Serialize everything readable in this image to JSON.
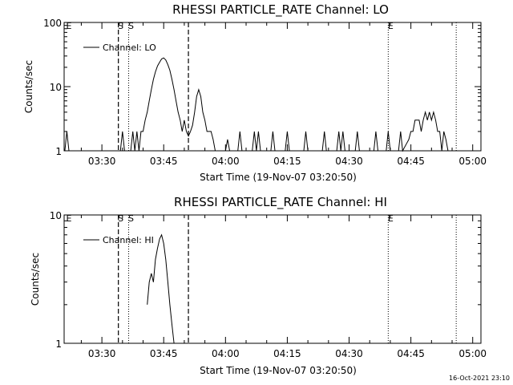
{
  "footer": {
    "stamp": "16-Oct-2021 23:10"
  },
  "chart_data": [
    {
      "type": "line",
      "title": "RHESSI PARTICLE_RATE Channel: LO",
      "xlabel": "Start Time (19-Nov-07 03:20:50)",
      "ylabel": "Counts/sec",
      "yscale": "log",
      "ylim": [
        1,
        100
      ],
      "yticks": [
        {
          "v": 1,
          "label": "1"
        },
        {
          "v": 10,
          "label": "10"
        },
        {
          "v": 100,
          "label": "100"
        }
      ],
      "xlim": [
        "03:20:50",
        "05:02:00"
      ],
      "xticks": [
        "03:30",
        "03:45",
        "04:00",
        "04:15",
        "04:30",
        "04:45",
        "05:00"
      ],
      "legend": {
        "position": "top-left",
        "label": "Channel: LO"
      },
      "events": [
        {
          "t": "03:20:50",
          "label": "E",
          "style": "none"
        },
        {
          "t": "03:34:00",
          "label": "S",
          "style": "dashed"
        },
        {
          "t": "03:36:30",
          "label": "S",
          "style": "dotted"
        },
        {
          "t": "03:51:00",
          "label": "",
          "style": "dashed"
        },
        {
          "t": "04:39:30",
          "label": "E",
          "style": "dotted"
        },
        {
          "t": "04:56:00",
          "label": "",
          "style": "dotted"
        }
      ],
      "series": [
        {
          "name": "Channel: LO",
          "points": [
            [
              "03:21:00",
              1
            ],
            [
              "03:21:30",
              2
            ],
            [
              "03:22:00",
              1
            ],
            [
              "03:34:30",
              1
            ],
            [
              "03:35:00",
              2
            ],
            [
              "03:35:30",
              1
            ],
            [
              "03:37:00",
              1
            ],
            [
              "03:37:30",
              2
            ],
            [
              "03:38:00",
              1
            ],
            [
              "03:38:30",
              2
            ],
            [
              "03:39:00",
              1
            ],
            [
              "03:39:30",
              2
            ],
            [
              "03:40:00",
              2
            ],
            [
              "03:40:30",
              3
            ],
            [
              "03:41:00",
              4
            ],
            [
              "03:41:30",
              6
            ],
            [
              "03:42:00",
              9
            ],
            [
              "03:42:30",
              13
            ],
            [
              "03:43:00",
              17
            ],
            [
              "03:43:30",
              21
            ],
            [
              "03:44:00",
              24
            ],
            [
              "03:44:30",
              27
            ],
            [
              "03:45:00",
              28
            ],
            [
              "03:45:30",
              26
            ],
            [
              "03:46:00",
              22
            ],
            [
              "03:46:30",
              18
            ],
            [
              "03:47:00",
              13
            ],
            [
              "03:47:30",
              9
            ],
            [
              "03:48:00",
              6
            ],
            [
              "03:48:30",
              4
            ],
            [
              "03:49:00",
              3
            ],
            [
              "03:49:30",
              2
            ],
            [
              "03:50:00",
              3
            ],
            [
              "03:50:30",
              2
            ],
            [
              "03:51:00",
              1.7
            ],
            [
              "03:51:30",
              2
            ],
            [
              "03:52:00",
              2.5
            ],
            [
              "03:52:30",
              4
            ],
            [
              "03:53:00",
              7
            ],
            [
              "03:53:30",
              9
            ],
            [
              "03:54:00",
              7
            ],
            [
              "03:54:30",
              4
            ],
            [
              "03:55:00",
              3
            ],
            [
              "03:55:30",
              2
            ],
            [
              "03:56:00",
              2
            ],
            [
              "03:56:30",
              2
            ],
            [
              "03:57:00",
              1.5
            ],
            [
              "03:57:30",
              1
            ],
            [
              "04:00:00",
              1
            ],
            [
              "04:00:30",
              1.5
            ],
            [
              "04:01:00",
              1
            ],
            [
              "04:03:00",
              1
            ],
            [
              "04:03:30",
              2
            ],
            [
              "04:04:00",
              1
            ],
            [
              "04:06:30",
              1
            ],
            [
              "04:07:00",
              2
            ],
            [
              "04:07:30",
              1
            ],
            [
              "04:08:00",
              2
            ],
            [
              "04:08:30",
              1
            ],
            [
              "04:11:00",
              1
            ],
            [
              "04:11:30",
              2
            ],
            [
              "04:12:00",
              1
            ],
            [
              "04:14:30",
              1
            ],
            [
              "04:15:00",
              2
            ],
            [
              "04:15:30",
              1
            ],
            [
              "04:19:00",
              1
            ],
            [
              "04:19:30",
              2
            ],
            [
              "04:20:00",
              1
            ],
            [
              "04:23:30",
              1
            ],
            [
              "04:24:00",
              2
            ],
            [
              "04:24:30",
              1
            ],
            [
              "04:27:00",
              1
            ],
            [
              "04:27:30",
              2
            ],
            [
              "04:28:00",
              1
            ],
            [
              "04:28:30",
              2
            ],
            [
              "04:29:00",
              1
            ],
            [
              "04:31:30",
              1
            ],
            [
              "04:32:00",
              2
            ],
            [
              "04:32:30",
              1
            ],
            [
              "04:36:00",
              1
            ],
            [
              "04:36:30",
              2
            ],
            [
              "04:37:00",
              1
            ],
            [
              "04:39:00",
              1
            ],
            [
              "04:39:30",
              2
            ],
            [
              "04:40:00",
              1
            ],
            [
              "04:42:00",
              1
            ],
            [
              "04:42:30",
              2
            ],
            [
              "04:43:00",
              1
            ],
            [
              "04:44:30",
              1.5
            ],
            [
              "04:45:00",
              2
            ],
            [
              "04:45:30",
              2
            ],
            [
              "04:46:00",
              3
            ],
            [
              "04:46:30",
              3
            ],
            [
              "04:47:00",
              3
            ],
            [
              "04:47:30",
              2
            ],
            [
              "04:48:00",
              3
            ],
            [
              "04:48:30",
              4
            ],
            [
              "04:49:00",
              3
            ],
            [
              "04:49:30",
              4
            ],
            [
              "04:50:00",
              3
            ],
            [
              "04:50:30",
              4
            ],
            [
              "04:51:00",
              3
            ],
            [
              "04:51:30",
              2
            ],
            [
              "04:52:00",
              2
            ],
            [
              "04:52:30",
              1
            ],
            [
              "04:53:00",
              2
            ],
            [
              "04:53:30",
              1.5
            ],
            [
              "04:54:00",
              1
            ],
            [
              "04:55:00",
              1
            ]
          ]
        }
      ]
    },
    {
      "type": "line",
      "title": "RHESSI PARTICLE_RATE Channel: HI",
      "xlabel": "Start Time (19-Nov-07 03:20:50)",
      "ylabel": "Counts/sec",
      "yscale": "log",
      "ylim": [
        1,
        10
      ],
      "yticks": [
        {
          "v": 1,
          "label": "1"
        },
        {
          "v": 10,
          "label": "10"
        }
      ],
      "xlim": [
        "03:20:50",
        "05:02:00"
      ],
      "xticks": [
        "03:30",
        "03:45",
        "04:00",
        "04:15",
        "04:30",
        "04:45",
        "05:00"
      ],
      "legend": {
        "position": "top-left",
        "label": "Channel: HI"
      },
      "events": [
        {
          "t": "03:20:50",
          "label": "E",
          "style": "none"
        },
        {
          "t": "03:34:00",
          "label": "S",
          "style": "dashed"
        },
        {
          "t": "03:36:30",
          "label": "S",
          "style": "dotted"
        },
        {
          "t": "03:51:00",
          "label": "",
          "style": "dashed"
        },
        {
          "t": "04:39:30",
          "label": "E",
          "style": "dotted"
        },
        {
          "t": "04:56:00",
          "label": "",
          "style": "dotted"
        }
      ],
      "series": [
        {
          "name": "Channel: HI",
          "points": [
            [
              "03:41:00",
              2
            ],
            [
              "03:41:30",
              3
            ],
            [
              "03:42:00",
              3.5
            ],
            [
              "03:42:30",
              3
            ],
            [
              "03:43:00",
              4.5
            ],
            [
              "03:43:30",
              5.5
            ],
            [
              "03:44:00",
              6.5
            ],
            [
              "03:44:30",
              7
            ],
            [
              "03:45:00",
              6
            ],
            [
              "03:45:30",
              4.5
            ],
            [
              "03:46:00",
              3
            ],
            [
              "03:46:30",
              2
            ],
            [
              "03:47:00",
              1.4
            ],
            [
              "03:47:30",
              1
            ]
          ]
        }
      ]
    }
  ]
}
